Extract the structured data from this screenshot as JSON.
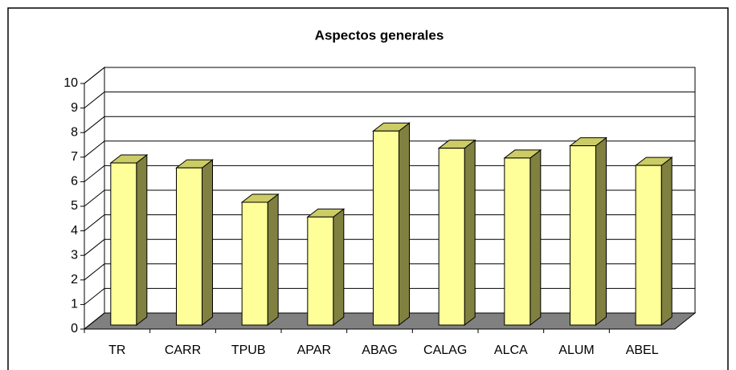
{
  "chart_data": {
    "type": "bar3d",
    "title": "Aspectos generales",
    "categories": [
      "TR",
      "CARR",
      "TPUB",
      "APAR",
      "ABAG",
      "CALAG",
      "ALCA",
      "ALUM",
      "ABEL"
    ],
    "values": [
      6.6,
      6.4,
      5.0,
      4.4,
      7.9,
      7.2,
      6.8,
      7.3,
      6.5
    ],
    "color": "#ffff99",
    "ylim": [
      0,
      10
    ],
    "yticks": [
      0,
      1,
      2,
      3,
      4,
      5,
      6,
      7,
      8,
      9,
      10
    ],
    "grid": true
  }
}
